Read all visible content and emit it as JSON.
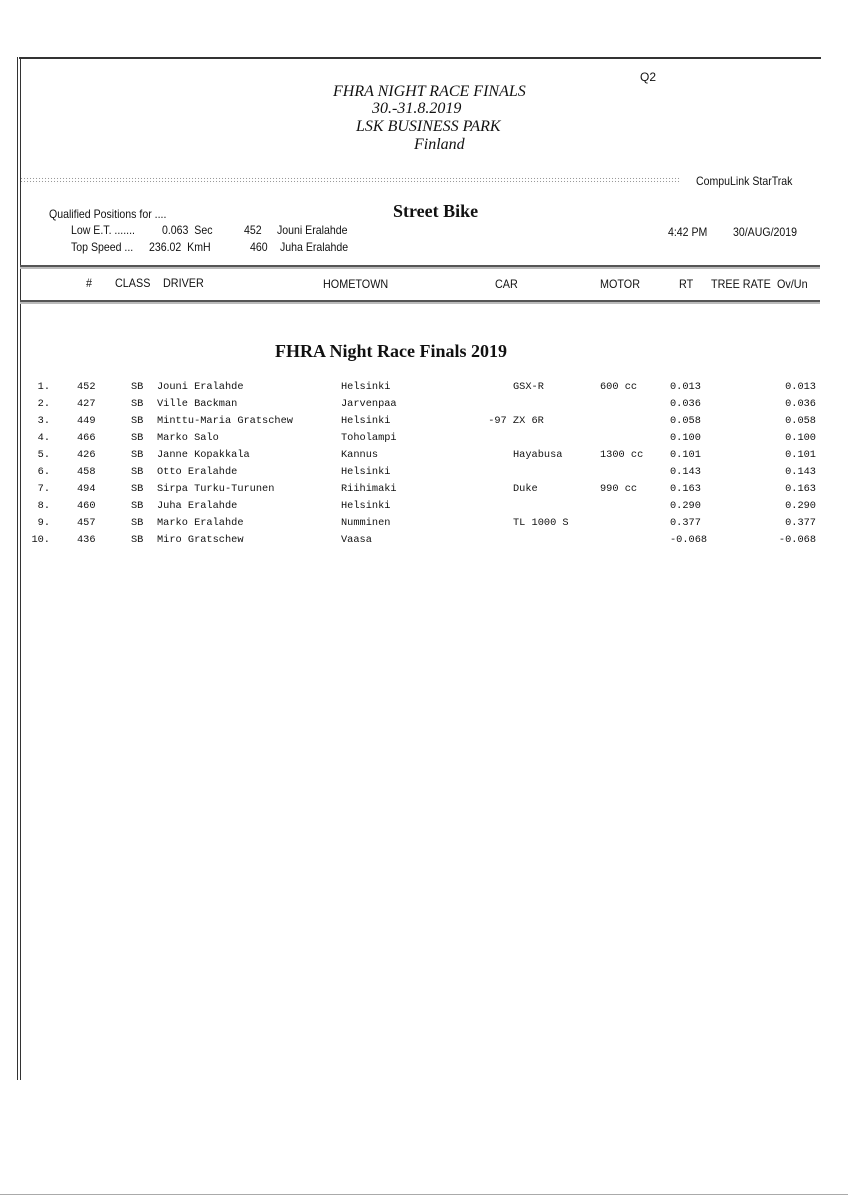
{
  "header": {
    "code": "Q2",
    "title_lines": [
      "FHRA NIGHT RACE FINALS",
      "30.-31.8.2019",
      "LSK BUSINESS PARK",
      "Finland"
    ],
    "software": "CompuLink  StarTrak"
  },
  "summary": {
    "label": "Qualified Positions for ....",
    "class_title": "Street Bike",
    "low_et_label": "Low E.T. .......",
    "low_et_value": "0.063  Sec",
    "low_et_number": "452",
    "low_et_driver": "Jouni Eralahde",
    "top_speed_label": "Top Speed ...",
    "top_speed_value": "236.02  KmH",
    "top_speed_number": "460",
    "top_speed_driver": "Juha Eralahde",
    "time": "4:42 PM",
    "date": "30/AUG/2019"
  },
  "columns": {
    "num": "#",
    "class": "CLASS",
    "driver": "DRIVER",
    "hometown": "HOMETOWN",
    "car": "CAR",
    "motor": "MOTOR",
    "rt": "RT",
    "tree_rate": "TREE RATE",
    "ovun": "Ov/Un"
  },
  "event_title": "FHRA Night Race Finals 2019",
  "rows": [
    {
      "pos": "1.",
      "num": "452",
      "class": "SB",
      "driver": "Jouni Eralahde",
      "hometown": "Helsinki",
      "car": "GSX-R",
      "motor": "600 cc",
      "rt": "0.013",
      "ovun": "0.013"
    },
    {
      "pos": "2.",
      "num": "427",
      "class": "SB",
      "driver": "Ville Backman",
      "hometown": "Jarvenpaa",
      "car": "",
      "motor": "",
      "rt": "0.036",
      "ovun": "0.036"
    },
    {
      "pos": "3.",
      "num": "449",
      "class": "SB",
      "driver": "Minttu-Maria Gratschew",
      "hometown": "Helsinki",
      "car": "-97 ZX 6R",
      "motor": "",
      "rt": "0.058",
      "ovun": "0.058"
    },
    {
      "pos": "4.",
      "num": "466",
      "class": "SB",
      "driver": "Marko Salo",
      "hometown": "Toholampi",
      "car": "",
      "motor": "",
      "rt": "0.100",
      "ovun": "0.100"
    },
    {
      "pos": "5.",
      "num": "426",
      "class": "SB",
      "driver": "Janne Kopakkala",
      "hometown": "Kannus",
      "car": "Hayabusa",
      "motor": "1300 cc",
      "rt": "0.101",
      "ovun": "0.101"
    },
    {
      "pos": "6.",
      "num": "458",
      "class": "SB",
      "driver": "Otto Eralahde",
      "hometown": "Helsinki",
      "car": "",
      "motor": "",
      "rt": "0.143",
      "ovun": "0.143"
    },
    {
      "pos": "7.",
      "num": "494",
      "class": "SB",
      "driver": "Sirpa Turku-Turunen",
      "hometown": "Riihimaki",
      "car": "Duke",
      "motor": "990 cc",
      "rt": "0.163",
      "ovun": "0.163"
    },
    {
      "pos": "8.",
      "num": "460",
      "class": "SB",
      "driver": "Juha Eralahde",
      "hometown": "Helsinki",
      "car": "",
      "motor": "",
      "rt": "0.290",
      "ovun": "0.290"
    },
    {
      "pos": "9.",
      "num": "457",
      "class": "SB",
      "driver": "Marko Eralahde",
      "hometown": "Numminen",
      "car": "TL 1000 S",
      "motor": "",
      "rt": "0.377",
      "ovun": "0.377"
    },
    {
      "pos": "10.",
      "num": "436",
      "class": "SB",
      "driver": "Miro Gratschew",
      "hometown": "Vaasa",
      "car": "",
      "motor": "",
      "rt": "-0.068",
      "ovun": "-0.068"
    }
  ]
}
